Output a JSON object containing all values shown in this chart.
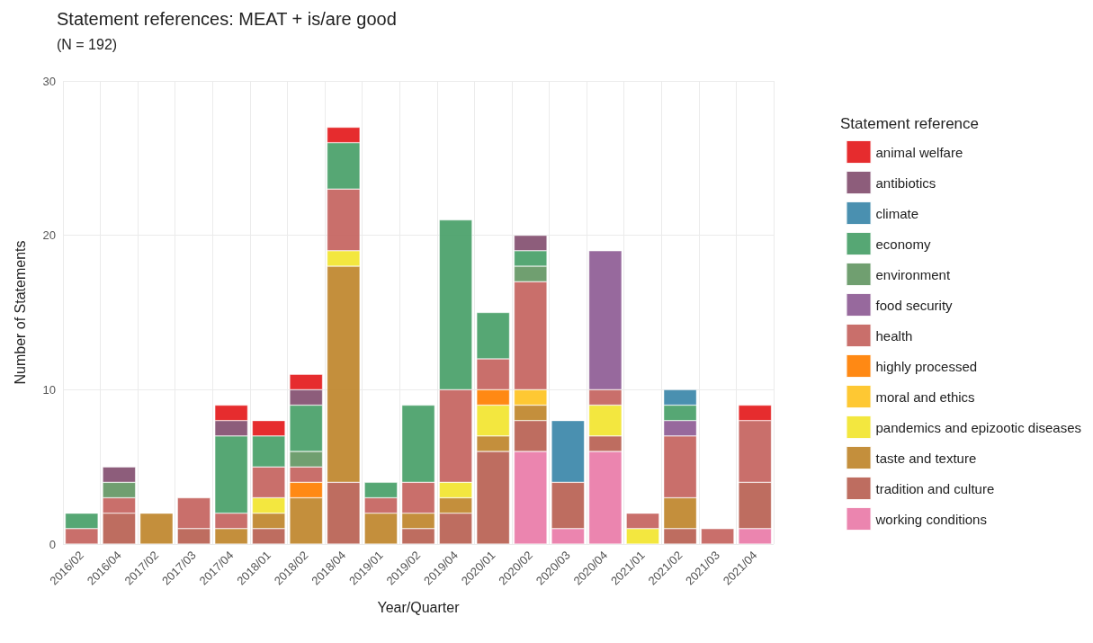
{
  "chart_data": {
    "type": "bar",
    "stacked": true,
    "title": "Statement references: MEAT + is/are good",
    "subtitle": "(N = 192)",
    "xlabel": "Year/Quarter",
    "ylabel": "Number of Statements",
    "legend_title": "Statement reference",
    "categories": [
      "2016/02",
      "2016/04",
      "2017/02",
      "2017/03",
      "2017/04",
      "2018/01",
      "2018/02",
      "2018/04",
      "2019/01",
      "2019/02",
      "2019/04",
      "2020/01",
      "2020/02",
      "2020/03",
      "2020/04",
      "2021/01",
      "2021/02",
      "2021/03",
      "2021/04"
    ],
    "ylim": [
      0,
      30
    ],
    "yticks": [
      0,
      10,
      20,
      30
    ],
    "grid": true,
    "legend": "right",
    "series": [
      {
        "name": "working conditions",
        "color": "#e97ba8",
        "values": [
          null,
          null,
          null,
          null,
          null,
          null,
          null,
          null,
          null,
          null,
          null,
          null,
          6,
          1,
          6,
          null,
          null,
          null,
          1
        ]
      },
      {
        "name": "tradition and culture",
        "color": "#b86152",
        "values": [
          null,
          2,
          null,
          1,
          null,
          1,
          null,
          4,
          null,
          1,
          2,
          6,
          2,
          3,
          1,
          null,
          1,
          null,
          3
        ]
      },
      {
        "name": "taste and texture",
        "color": "#bf862b",
        "values": [
          null,
          null,
          2,
          null,
          1,
          1,
          3,
          14,
          2,
          1,
          1,
          1,
          1,
          null,
          null,
          null,
          2,
          null,
          null
        ]
      },
      {
        "name": "pandemics and epizootic diseases",
        "color": "#f2e52f",
        "values": [
          null,
          null,
          null,
          null,
          null,
          1,
          null,
          1,
          null,
          null,
          1,
          2,
          null,
          null,
          2,
          1,
          null,
          null,
          null
        ]
      },
      {
        "name": "moral and ethics",
        "color": "#fec322",
        "values": [
          null,
          null,
          null,
          null,
          null,
          null,
          null,
          null,
          null,
          null,
          null,
          null,
          1,
          null,
          null,
          null,
          null,
          null,
          null
        ]
      },
      {
        "name": "highly processed",
        "color": "#ff7f00",
        "values": [
          null,
          null,
          null,
          null,
          null,
          null,
          1,
          null,
          null,
          null,
          null,
          1,
          null,
          null,
          null,
          null,
          null,
          null,
          null
        ]
      },
      {
        "name": "health",
        "color": "#c4635e",
        "values": [
          1,
          1,
          null,
          2,
          1,
          2,
          1,
          4,
          1,
          2,
          6,
          2,
          7,
          null,
          1,
          1,
          4,
          1,
          4
        ]
      },
      {
        "name": "food security",
        "color": "#8e5c95",
        "values": [
          null,
          null,
          null,
          null,
          null,
          null,
          null,
          null,
          null,
          null,
          null,
          null,
          null,
          null,
          9,
          null,
          1,
          null,
          null
        ]
      },
      {
        "name": "environment",
        "color": "#649764",
        "values": [
          null,
          1,
          null,
          null,
          null,
          null,
          1,
          null,
          null,
          null,
          null,
          null,
          1,
          null,
          null,
          null,
          null,
          null,
          null
        ]
      },
      {
        "name": "economy",
        "color": "#48a068",
        "values": [
          1,
          null,
          null,
          null,
          5,
          2,
          3,
          3,
          1,
          5,
          11,
          3,
          1,
          null,
          null,
          null,
          1,
          null,
          null
        ]
      },
      {
        "name": "climate",
        "color": "#3b87a9",
        "values": [
          null,
          null,
          null,
          null,
          null,
          null,
          null,
          null,
          null,
          null,
          null,
          null,
          null,
          4,
          null,
          null,
          1,
          null,
          null
        ]
      },
      {
        "name": "antibiotics",
        "color": "#834f70",
        "values": [
          null,
          1,
          null,
          null,
          1,
          null,
          1,
          null,
          null,
          null,
          null,
          null,
          1,
          null,
          null,
          null,
          null,
          null,
          null
        ]
      },
      {
        "name": "animal welfare",
        "color": "#e41a1c",
        "values": [
          null,
          null,
          null,
          null,
          1,
          1,
          1,
          1,
          null,
          null,
          null,
          null,
          null,
          null,
          null,
          null,
          null,
          null,
          1
        ]
      }
    ]
  }
}
